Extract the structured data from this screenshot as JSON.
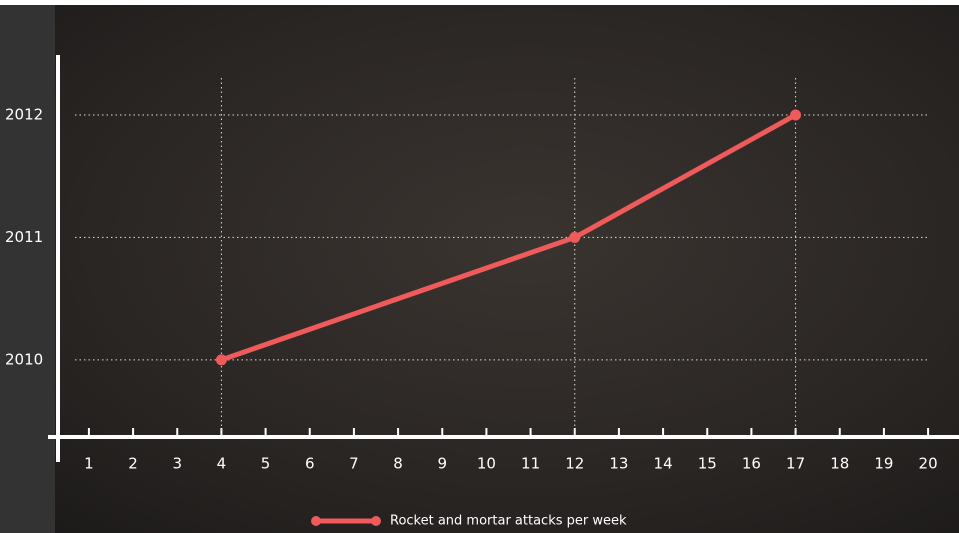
{
  "chart_data": {
    "type": "line",
    "x": [
      4,
      12,
      17
    ],
    "series": [
      {
        "name": "Rocket and mortar attacks per week",
        "color": "#ef5a5a",
        "values": [
          2010,
          2011,
          2012
        ]
      }
    ],
    "xlim": [
      0.3,
      20.7
    ],
    "xticks": [
      1,
      2,
      3,
      4,
      5,
      6,
      7,
      8,
      9,
      10,
      11,
      12,
      13,
      14,
      15,
      16,
      17,
      18,
      19,
      20
    ],
    "ylim": [
      2009.37,
      2012.49
    ],
    "yticks": [
      2010,
      2011,
      2012
    ],
    "grid": true,
    "legend": "bottom"
  }
}
